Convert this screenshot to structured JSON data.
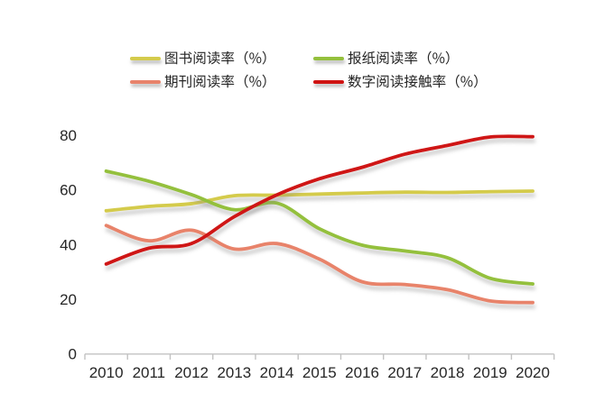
{
  "page": {
    "background": "#ffffff",
    "text_color": "#262626",
    "axis_color": "#c3c3c3"
  },
  "legend": {
    "rows": 2,
    "columns": 2,
    "order": [
      0,
      1,
      2,
      3
    ]
  },
  "chart_data": {
    "type": "line",
    "smooth": true,
    "title": "",
    "xlabel": "",
    "ylabel": "",
    "categories": [
      "2010",
      "2011",
      "2012",
      "2013",
      "2014",
      "2015",
      "2016",
      "2017",
      "2018",
      "2019",
      "2020"
    ],
    "series": [
      {
        "name": "图书阅读率（%）",
        "color": "#d4cb4c",
        "values": [
          52.3,
          53.9,
          54.9,
          57.8,
          58.0,
          58.4,
          58.8,
          59.1,
          59.0,
          59.3,
          59.5
        ]
      },
      {
        "name": "报纸阅读率（%）",
        "color": "#94c03c",
        "values": [
          66.8,
          63.1,
          58.2,
          52.7,
          55.1,
          45.7,
          39.7,
          37.6,
          35.1,
          27.6,
          25.5
        ]
      },
      {
        "name": "期刊阅读率（%）",
        "color": "#e8836b",
        "values": [
          46.9,
          41.3,
          45.2,
          38.3,
          40.3,
          34.6,
          26.3,
          25.3,
          23.4,
          19.3,
          18.7
        ]
      },
      {
        "name": "数字阅读接触率（%）",
        "color": "#cf1312",
        "values": [
          32.8,
          38.6,
          40.3,
          50.1,
          58.1,
          64.0,
          68.2,
          73.0,
          76.2,
          79.3,
          79.4
        ]
      }
    ],
    "yticks": [
      0,
      20,
      40,
      60,
      80
    ],
    "ylim": [
      0,
      80
    ],
    "legend_position": "top",
    "grid": false
  }
}
